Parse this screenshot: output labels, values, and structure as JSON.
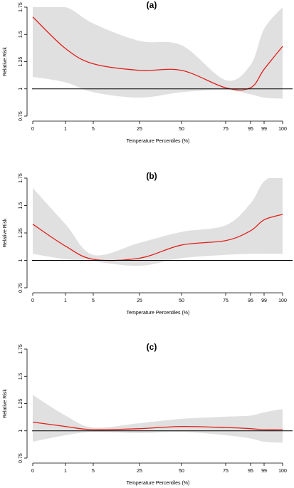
{
  "chart_data": [
    {
      "type": "line",
      "title": "(a)",
      "xlabel": "Temperature Percentiles (%)",
      "ylabel": "Relative Risk",
      "ylim": [
        0.75,
        1.75
      ],
      "yticks": [
        "0.75",
        "1",
        "1.25",
        "1.5",
        "1.75"
      ],
      "xticks": [
        "0",
        "1",
        "5",
        "25",
        "50",
        "75",
        "95",
        "99",
        "100"
      ],
      "reference_line": 1,
      "colors": {
        "line": "#e0201b",
        "band": "#e0e0e0",
        "reference": "#000000"
      },
      "series": [
        {
          "x": [
            0,
            1,
            5,
            25,
            50,
            75,
            95,
            99,
            100
          ],
          "y": [
            1.66,
            1.37,
            1.23,
            1.17,
            1.17,
            1.01,
            1.01,
            1.18,
            1.39
          ],
          "ci_lower": [
            1.11,
            1.06,
            0.97,
            0.92,
            0.97,
            0.99,
            0.95,
            0.92,
            0.91
          ],
          "ci_upper": [
            1.75,
            1.75,
            1.6,
            1.44,
            1.4,
            1.08,
            1.22,
            1.55,
            1.75
          ]
        }
      ]
    },
    {
      "type": "line",
      "title": "(b)",
      "xlabel": "Temperature Percentiles (%)",
      "ylabel": "Relative Risk",
      "ylim": [
        0.75,
        1.75
      ],
      "yticks": [
        "0.75",
        "1",
        "1.25",
        "1.5",
        "1.75"
      ],
      "xticks": [
        "0",
        "1",
        "5",
        "25",
        "50",
        "75",
        "95",
        "99",
        "100"
      ],
      "reference_line": 1,
      "colors": {
        "line": "#e0201b",
        "band": "#e0e0e0",
        "reference": "#000000"
      },
      "series": [
        {
          "x": [
            0,
            1,
            5,
            25,
            50,
            75,
            95,
            99,
            100
          ],
          "y": [
            1.33,
            1.13,
            1.01,
            1.02,
            1.14,
            1.18,
            1.27,
            1.37,
            1.42
          ],
          "ci_lower": [
            1.06,
            1.01,
            0.99,
            0.95,
            1.02,
            1.05,
            1.06,
            1.06,
            1.06
          ],
          "ci_upper": [
            1.66,
            1.33,
            1.05,
            1.16,
            1.26,
            1.32,
            1.52,
            1.72,
            1.8
          ]
        }
      ]
    },
    {
      "type": "line",
      "title": "(c)",
      "xlabel": "Temperature Percentiles (%)",
      "ylabel": "Relative Risk",
      "ylim": [
        0.75,
        1.75
      ],
      "yticks": [
        "0.75",
        "1",
        "1.25",
        "1.5",
        "1.75"
      ],
      "xticks": [
        "0",
        "1",
        "5",
        "25",
        "50",
        "75",
        "95",
        "99",
        "100"
      ],
      "reference_line": 1,
      "colors": {
        "line": "#e0201b",
        "band": "#e0e0e0",
        "reference": "#000000"
      },
      "series": [
        {
          "x": [
            0,
            1,
            5,
            25,
            50,
            75,
            95,
            99,
            100
          ],
          "y": [
            1.08,
            1.04,
            1.01,
            1.02,
            1.04,
            1.03,
            1.02,
            1.01,
            1.01
          ],
          "ci_lower": [
            0.9,
            0.96,
            0.99,
            0.98,
            0.99,
            0.96,
            0.93,
            0.9,
            0.89
          ],
          "ci_upper": [
            1.33,
            1.14,
            1.03,
            1.07,
            1.11,
            1.13,
            1.14,
            1.17,
            1.2
          ]
        }
      ]
    }
  ]
}
